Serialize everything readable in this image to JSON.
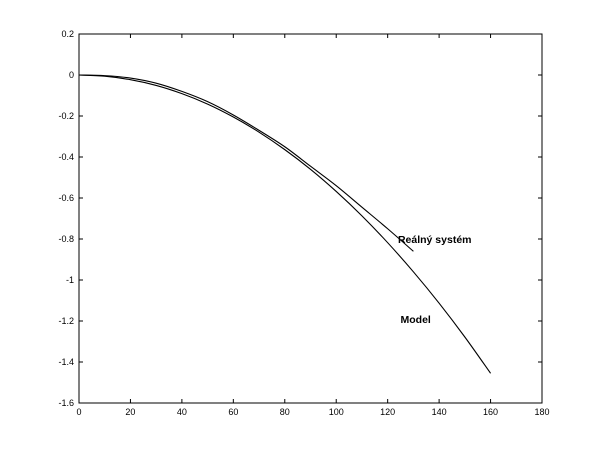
{
  "chart_data": {
    "type": "line",
    "title": "",
    "xlabel": "",
    "ylabel": "",
    "xlim": [
      0,
      180
    ],
    "ylim": [
      -1.6,
      0.2
    ],
    "x_ticks": [
      0,
      20,
      40,
      60,
      80,
      100,
      120,
      140,
      160,
      180
    ],
    "x_tick_labels": [
      "0",
      "20",
      "40",
      "60",
      "80",
      "100",
      "120",
      "140",
      "160",
      "180"
    ],
    "y_ticks": [
      0.2,
      0,
      -0.2,
      -0.4,
      -0.6,
      -0.8,
      -1,
      -1.2,
      -1.4,
      -1.6
    ],
    "y_tick_labels": [
      "0.2",
      "0",
      "-0.2",
      "-0.4",
      "-0.6",
      "-0.8",
      "-1",
      "-1.2",
      "-1.4",
      "-1.6"
    ],
    "grid": false,
    "series": [
      {
        "name": "Reálný systém",
        "color": "#000000",
        "x": [
          0,
          10,
          20,
          30,
          40,
          50,
          60,
          70,
          80,
          90,
          100,
          110,
          120,
          130
        ],
        "y": [
          0,
          -0.003,
          -0.015,
          -0.04,
          -0.08,
          -0.13,
          -0.195,
          -0.27,
          -0.35,
          -0.445,
          -0.54,
          -0.645,
          -0.75,
          -0.86
        ]
      },
      {
        "name": "Model",
        "color": "#000000",
        "x": [
          0,
          10,
          20,
          30,
          40,
          50,
          60,
          70,
          80,
          90,
          100,
          110,
          120,
          130,
          140,
          150,
          160
        ],
        "y": [
          0,
          -0.006,
          -0.023,
          -0.051,
          -0.091,
          -0.142,
          -0.205,
          -0.279,
          -0.364,
          -0.46,
          -0.568,
          -0.687,
          -0.818,
          -0.96,
          -1.113,
          -1.278,
          -1.455
        ]
      }
    ],
    "annotations": [
      {
        "text": "Reálný systém",
        "x": 124,
        "y": -0.8
      },
      {
        "text": "Model",
        "x": 125,
        "y": -1.19
      }
    ]
  }
}
